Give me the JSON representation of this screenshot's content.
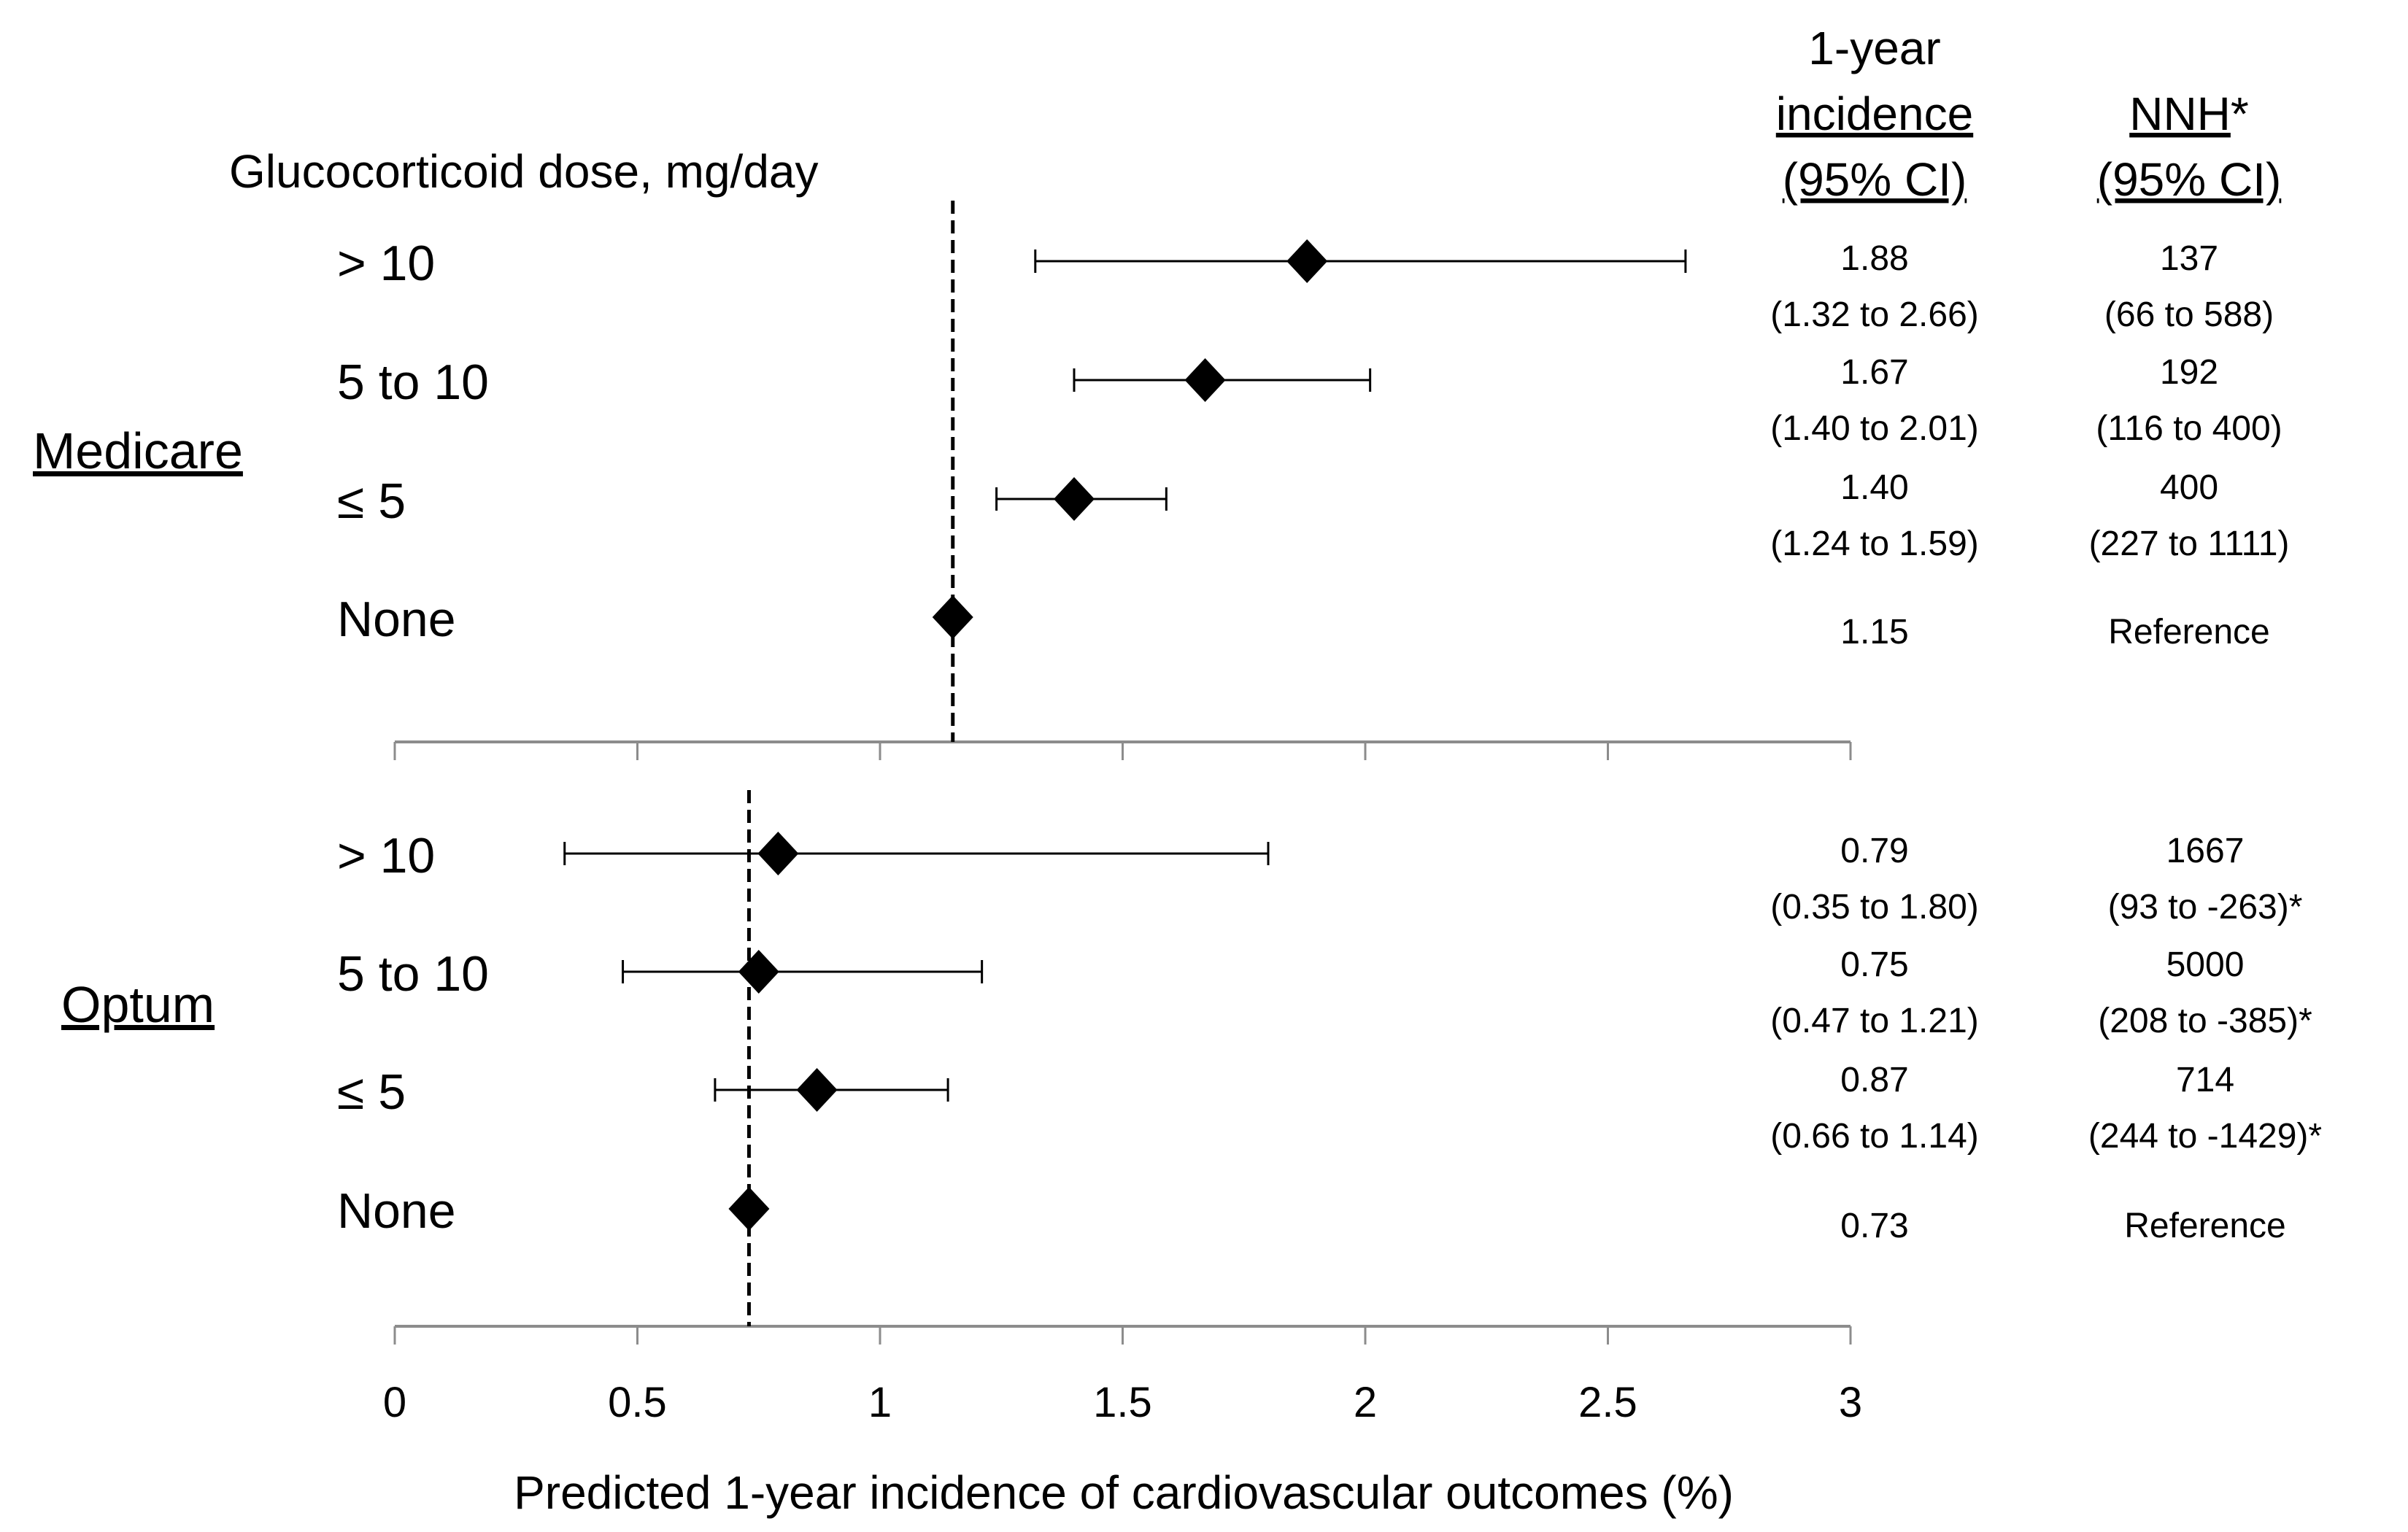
{
  "chart_data": {
    "type": "forest",
    "xlabel": "Predicted 1-year incidence of cardiovascular outcomes (%)",
    "xlim": [
      0,
      3
    ],
    "xticks": [
      0,
      0.5,
      1,
      1.5,
      2,
      2.5,
      3
    ],
    "xtick_labels": [
      "0",
      "0.5",
      "1",
      "1.5",
      "2",
      "2.5",
      "3"
    ],
    "dose_header": "Glucocorticoid dose, mg/day",
    "column_headers": {
      "incidence": [
        "1-year",
        "incidence",
        "(95% CI)"
      ],
      "nnh": [
        "NNH",
        "*",
        "(95% CI)"
      ]
    },
    "marker": "diamond",
    "reference_line": "dashed",
    "groups": [
      {
        "name": "Medicare",
        "reference_value": 1.15,
        "rows": [
          {
            "dose": "> 10",
            "estimate": 1.88,
            "lower": 1.32,
            "upper": 2.66,
            "incidence_text": "1.88",
            "incidence_ci_text": "(1.32 to 2.66)",
            "nnh_text": "137",
            "nnh_ci_text": "(66 to 588)"
          },
          {
            "dose": "5 to 10",
            "estimate": 1.67,
            "lower": 1.4,
            "upper": 2.01,
            "incidence_text": "1.67",
            "incidence_ci_text": "(1.40 to 2.01)",
            "nnh_text": "192",
            "nnh_ci_text": "(116 to 400)"
          },
          {
            "dose": "≤ 5",
            "estimate": 1.4,
            "lower": 1.24,
            "upper": 1.59,
            "incidence_text": "1.40",
            "incidence_ci_text": "(1.24 to 1.59)",
            "nnh_text": "400",
            "nnh_ci_text": "(227 to 1111)"
          },
          {
            "dose": "None",
            "estimate": 1.15,
            "lower": null,
            "upper": null,
            "incidence_text": "1.15",
            "incidence_ci_text": "",
            "nnh_text": "Reference",
            "nnh_ci_text": ""
          }
        ]
      },
      {
        "name": "Optum",
        "reference_value": 0.73,
        "rows": [
          {
            "dose": "> 10",
            "estimate": 0.79,
            "lower": 0.35,
            "upper": 1.8,
            "incidence_text": "0.79",
            "incidence_ci_text": "(0.35 to 1.80)",
            "nnh_text": "1667",
            "nnh_ci_text": "(93 to -263)*"
          },
          {
            "dose": "5 to 10",
            "estimate": 0.75,
            "lower": 0.47,
            "upper": 1.21,
            "incidence_text": "0.75",
            "incidence_ci_text": "(0.47 to 1.21)",
            "nnh_text": "5000",
            "nnh_ci_text": "(208 to -385)*"
          },
          {
            "dose": "≤ 5",
            "estimate": 0.87,
            "lower": 0.66,
            "upper": 1.14,
            "incidence_text": "0.87",
            "incidence_ci_text": "(0.66 to 1.14)",
            "nnh_text": "714",
            "nnh_ci_text": "(244 to  -1429)*"
          },
          {
            "dose": "None",
            "estimate": 0.73,
            "lower": null,
            "upper": null,
            "incidence_text": "0.73",
            "incidence_ci_text": "",
            "nnh_text": "Reference",
            "nnh_ci_text": ""
          }
        ]
      }
    ]
  },
  "colors": {
    "marker": "#000000",
    "axis": "#8c8c8c",
    "text": "#000000"
  }
}
